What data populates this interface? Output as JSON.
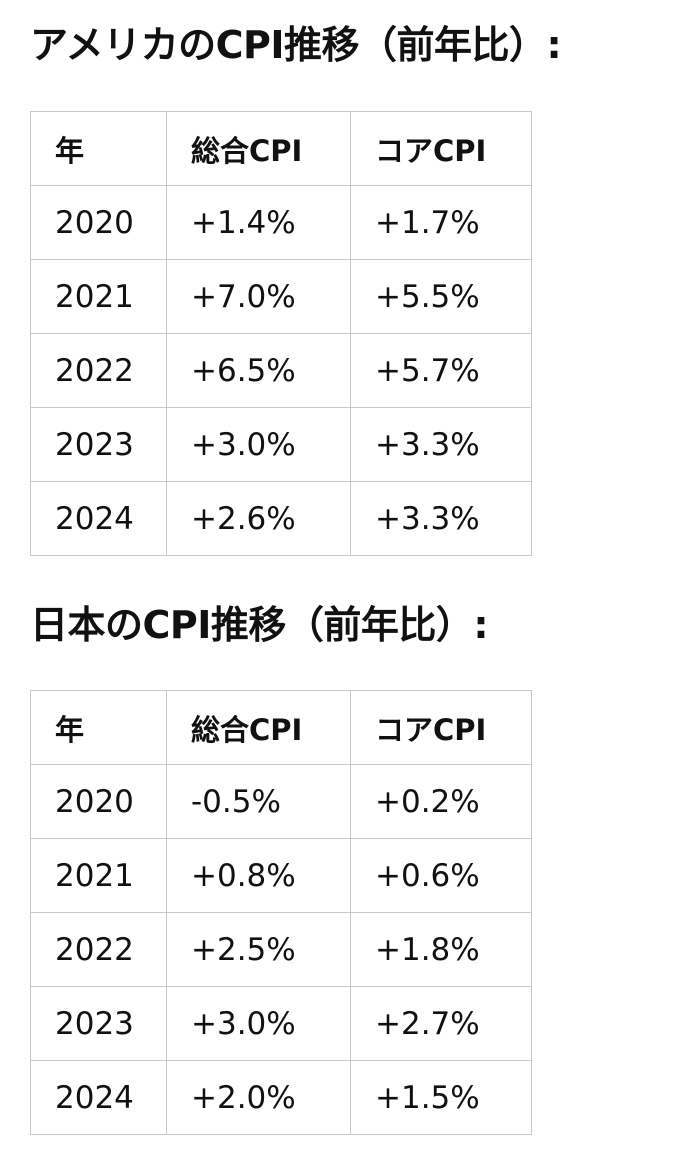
{
  "sections": [
    {
      "title": "アメリカのCPI推移（前年比）:",
      "headers": [
        "年",
        "総合CPI",
        "コアCPI"
      ],
      "rows": [
        [
          "2020",
          "+1.4%",
          "+1.7%"
        ],
        [
          "2021",
          "+7.0%",
          "+5.5%"
        ],
        [
          "2022",
          "+6.5%",
          "+5.7%"
        ],
        [
          "2023",
          "+3.0%",
          "+3.3%"
        ],
        [
          "2024",
          "+2.6%",
          "+3.3%"
        ]
      ]
    },
    {
      "title": "日本のCPI推移（前年比）:",
      "headers": [
        "年",
        "総合CPI",
        "コアCPI"
      ],
      "rows": [
        [
          "2020",
          "-0.5%",
          "+0.2%"
        ],
        [
          "2021",
          "+0.8%",
          "+0.6%"
        ],
        [
          "2022",
          "+2.5%",
          "+1.8%"
        ],
        [
          "2023",
          "+3.0%",
          "+2.7%"
        ],
        [
          "2024",
          "+2.0%",
          "+1.5%"
        ]
      ]
    }
  ]
}
